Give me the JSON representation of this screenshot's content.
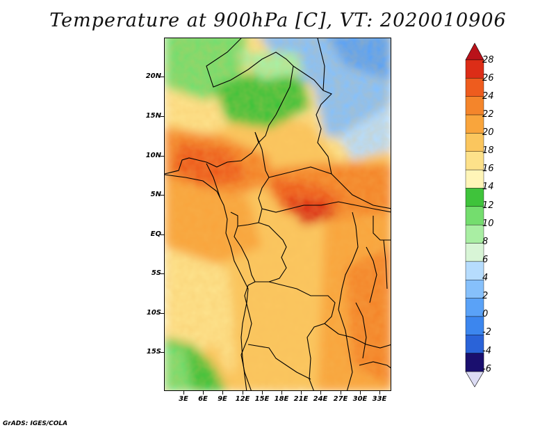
{
  "title": "Temperature at 900hPa [C], VT: 2020010906",
  "footer": "GrADS: IGES/COLA",
  "map": {
    "variable": "Temperature",
    "level": "900hPa",
    "units": "C",
    "valid_time": "2020010906",
    "latitude_labels": [
      "20N",
      "15N",
      "10N",
      "5N",
      "EQ",
      "5S",
      "10S",
      "15S"
    ],
    "longitude_labels": [
      "3E",
      "6E",
      "9E",
      "12E",
      "15E",
      "18E",
      "21E",
      "24E",
      "27E",
      "30E",
      "33E"
    ]
  },
  "colorbar": {
    "labels": [
      "28",
      "26",
      "24",
      "22",
      "20",
      "18",
      "16",
      "14",
      "12",
      "10",
      "8",
      "6",
      "4",
      "2",
      "0",
      "-2",
      "-4",
      "-6"
    ],
    "colors": [
      "#1a0f6e",
      "#1c3fbf",
      "#2a63d8",
      "#3c86ee",
      "#5aa2f7",
      "#86c0fb",
      "#b6dcfd",
      "#d8f5d6",
      "#a9eea3",
      "#74dd6e",
      "#3fc33b",
      "#fff5b8",
      "#fde18a",
      "#fbc65e",
      "#f9a53c",
      "#f4852b",
      "#ee5c1e",
      "#dc2d17",
      "#b9121a"
    ]
  }
}
